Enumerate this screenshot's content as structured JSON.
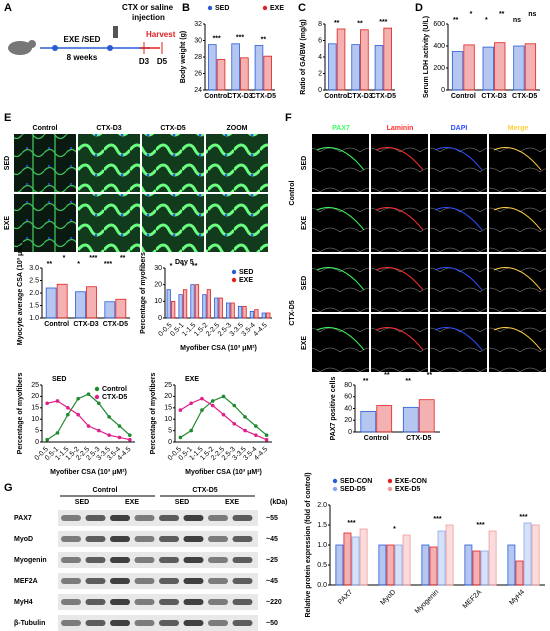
{
  "panel_labels": [
    "A",
    "B",
    "C",
    "D",
    "E",
    "F",
    "G"
  ],
  "schematic": {
    "group_label": "EXE /SED",
    "duration": "8 weeks",
    "injection_label": [
      "CTX or saline",
      "injection"
    ],
    "harvest": "Harvest",
    "days": [
      "D3",
      "D5"
    ]
  },
  "images_e": {
    "columns": [
      "Control",
      "CTX-D3",
      "CTX-D5",
      "ZOOM"
    ],
    "rows": [
      "SED",
      "EXE"
    ]
  },
  "images_f": {
    "columns": [
      "PAX7",
      "Laminin",
      "DAPI",
      "Merge"
    ],
    "rows": [
      "SED",
      "EXE",
      "SED",
      "EXE"
    ],
    "groups": [
      "Control",
      "CTX-D5"
    ]
  },
  "blot": {
    "groups": [
      "Control",
      "CTX-D5"
    ],
    "lanes": [
      "SED",
      "EXE",
      "SED",
      "EXE"
    ],
    "proteins": [
      "PAX7",
      "MyoD",
      "Myogenin",
      "MEF2A",
      "MyH4",
      "β-Tubulin"
    ],
    "sizes": [
      "~55",
      "~45",
      "~25",
      "~45",
      "~220",
      "~50"
    ],
    "unit_label": "(kDa)"
  },
  "chart_data": [
    {
      "type": "bar",
      "ylabel": "Body weight (g)",
      "categories": [
        "Control",
        "CTX-D3",
        "CTX-D5"
      ],
      "series": [
        {
          "name": "SED",
          "color": "#2a5bd7",
          "values": [
            29.5,
            29.6,
            29.4
          ]
        },
        {
          "name": "EXE",
          "color": "#e02020",
          "values": [
            27.7,
            27.9,
            28.1
          ]
        }
      ],
      "ylim": [
        24,
        32
      ],
      "yticks": [
        24,
        26,
        28,
        30,
        32
      ],
      "annotations": [
        "***",
        "***",
        "**"
      ],
      "legend": "top"
    },
    {
      "type": "bar",
      "ylabel": "Ratio of GA/BW (mg/g)",
      "categories": [
        "Control",
        "CTX-D3",
        "CTX-D5"
      ],
      "series": [
        {
          "name": "SED",
          "color": "#2a5bd7",
          "values": [
            5.6,
            5.5,
            5.4
          ]
        },
        {
          "name": "EXE",
          "color": "#e02020",
          "values": [
            7.4,
            7.3,
            7.5
          ]
        }
      ],
      "ylim": [
        0,
        8
      ],
      "yticks": [
        0,
        2,
        4,
        6,
        8
      ],
      "annotations": [
        "**",
        "**",
        "***"
      ]
    },
    {
      "type": "bar",
      "ylabel": "Serum LDH activity (U/L)",
      "categories": [
        "Control",
        "CTX-D3",
        "CTX-D5"
      ],
      "series": [
        {
          "name": "SED",
          "color": "#2a5bd7",
          "values": [
            350,
            390,
            400
          ]
        },
        {
          "name": "EXE",
          "color": "#e02020",
          "values": [
            410,
            430,
            420
          ]
        }
      ],
      "ylim": [
        0,
        600
      ],
      "yticks": [
        0,
        200,
        400,
        600
      ],
      "annotations": [
        "**",
        "*",
        "*",
        "**",
        "ns",
        "ns"
      ]
    },
    {
      "type": "bar",
      "ylabel": "Myocyte average CSA (10³ μm²)",
      "categories": [
        "Control",
        "CTX-D3",
        "CTX-D5"
      ],
      "series": [
        {
          "name": "SED",
          "color": "#2a5bd7",
          "values": [
            2.2,
            2.05,
            1.65
          ]
        },
        {
          "name": "EXE",
          "color": "#e02020",
          "values": [
            2.35,
            2.25,
            1.75
          ]
        }
      ],
      "ylim": [
        1,
        3
      ],
      "yticks": [
        {
          "value": 1,
          "label": "1.0"
        },
        1.5,
        {
          "value": 2,
          "label": "2.0"
        },
        2.5,
        {
          "value": 3,
          "label": "3.0"
        }
      ],
      "annotations": [
        "**",
        "*",
        "*",
        "***",
        "***",
        "**"
      ]
    },
    {
      "type": "bar",
      "title": "Day 5",
      "ylabel": "Percentage of myofibers",
      "xlabel": "Myofiber CSA (10³ μM²)",
      "categories": [
        "0-0.5",
        "0.5-1",
        "1-1.5",
        "1.5-2",
        "2-2.5",
        "2.5-3",
        "3-3.5",
        "3.5-4",
        "4-4.5"
      ],
      "series": [
        {
          "name": "SED",
          "color": "#2a5bd7",
          "values": [
            17,
            14,
            20,
            14,
            12,
            9,
            7,
            4,
            3
          ]
        },
        {
          "name": "EXE",
          "color": "#e02020",
          "values": [
            10,
            17,
            20,
            17,
            12,
            9,
            7,
            5,
            3
          ]
        }
      ],
      "ylim": [
        0,
        30
      ],
      "yticks": [
        0,
        10,
        20,
        30
      ],
      "annotations": [
        "*",
        "*",
        "**"
      ],
      "legend": "upper right"
    },
    {
      "type": "line",
      "title": "SED",
      "ylabel": "Percentage of myofibers",
      "xlabel": "Myofiber CSA (10³ μM²)",
      "categories": [
        "0-0.5",
        "0.5-1",
        "1-1.5",
        "1.5-2",
        "2-2.5",
        "2.5-3",
        "3-3.5",
        "3.5-4",
        "4-4.5"
      ],
      "series": [
        {
          "name": "Control",
          "color": "#1e8a2e",
          "values": [
            1,
            4,
            12,
            19,
            21,
            17,
            11,
            7,
            3
          ]
        },
        {
          "name": "CTX-D5",
          "color": "#e0208a",
          "values": [
            17,
            18,
            15,
            12,
            7,
            5,
            3,
            2,
            1
          ]
        }
      ],
      "ylim": [
        0,
        25
      ],
      "yticks": [
        0,
        5,
        10,
        15,
        20,
        25
      ],
      "legend": "upper right"
    },
    {
      "type": "line",
      "title": "EXE",
      "ylabel": "Percentage of myofibers",
      "xlabel": "Myofiber CSA (10³ μM²)",
      "categories": [
        "0-0.5",
        "0.5-1",
        "1-1.5",
        "1.5-2",
        "2-2.5",
        "2.5-3",
        "3-3.5",
        "3.5-4",
        "4-4.5"
      ],
      "series": [
        {
          "name": "Control",
          "color": "#1e8a2e",
          "values": [
            2,
            5,
            14,
            18,
            20,
            16,
            11,
            7,
            3
          ]
        },
        {
          "name": "CTX-D5",
          "color": "#e0208a",
          "values": [
            14,
            17,
            19,
            16,
            12,
            8,
            5,
            3,
            1
          ]
        }
      ],
      "ylim": [
        0,
        25
      ],
      "yticks": [
        0,
        5,
        10,
        15,
        20,
        25
      ]
    },
    {
      "type": "bar",
      "ylabel": "PAX7 positive cells",
      "categories": [
        "Control",
        "CTX-D5"
      ],
      "series": [
        {
          "name": "SED",
          "color": "#2a5bd7",
          "values": [
            35,
            42
          ]
        },
        {
          "name": "EXE",
          "color": "#e02020",
          "values": [
            45,
            55
          ]
        }
      ],
      "ylim": [
        0,
        80
      ],
      "yticks": [
        0,
        20,
        40,
        60,
        80
      ],
      "annotations": [
        "**",
        "**",
        "**",
        "**"
      ]
    },
    {
      "type": "bar",
      "ylabel": "Relative protein expression (fold of control)",
      "categories": [
        "PAX7",
        "MyoD",
        "Myogenin",
        "MEF2A",
        "MyH4"
      ],
      "series": [
        {
          "name": "SED-CON",
          "color": "#2a5bd7",
          "values": [
            1,
            1,
            1,
            1,
            1
          ]
        },
        {
          "name": "EXE-CON",
          "color": "#e02020",
          "values": [
            1.3,
            1,
            0.95,
            0.85,
            0.6
          ]
        },
        {
          "name": "SED-D5",
          "color": "#86a8ea",
          "values": [
            1.2,
            1,
            1.35,
            0.85,
            1.55
          ]
        },
        {
          "name": "EXE-D5",
          "color": "#f29a9a",
          "values": [
            1.4,
            1.25,
            1.5,
            1.35,
            1.5
          ]
        }
      ],
      "ylim": [
        0,
        2
      ],
      "yticks": [
        {
          "value": 0,
          "label": "0.0"
        },
        0.5,
        {
          "value": 1,
          "label": "1.0"
        },
        1.5,
        {
          "value": 2,
          "label": "2.0"
        }
      ],
      "annotations": [
        "***",
        "*",
        "***",
        "***",
        "***"
      ],
      "legend": "top"
    }
  ]
}
